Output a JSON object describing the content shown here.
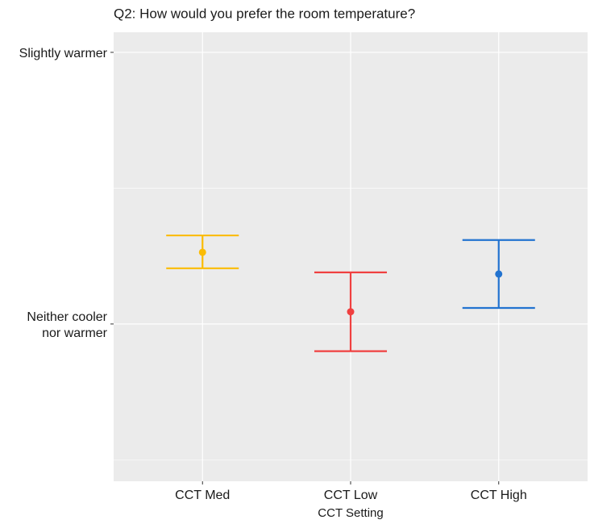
{
  "chart_data": {
    "type": "errorbar",
    "title": "Q2: How would you prefer the room temperature?",
    "x_label": "CCT Setting",
    "categories": [
      "CCT Med",
      "CCT Low",
      "CCT High"
    ],
    "values": [
      0.264,
      0.045,
      0.184
    ],
    "lower": [
      0.205,
      -0.1,
      0.059
    ],
    "upper": [
      0.326,
      0.19,
      0.309
    ],
    "colors": [
      "#fbbc05",
      "#f04040",
      "#2273d0"
    ],
    "ylim": [
      -0.579,
      1.074
    ],
    "yticks": [
      {
        "value": 0,
        "label": "Neither cooler\nnor warmer"
      },
      {
        "value": 1,
        "label": "Slightly warmer"
      }
    ],
    "grid": true
  }
}
